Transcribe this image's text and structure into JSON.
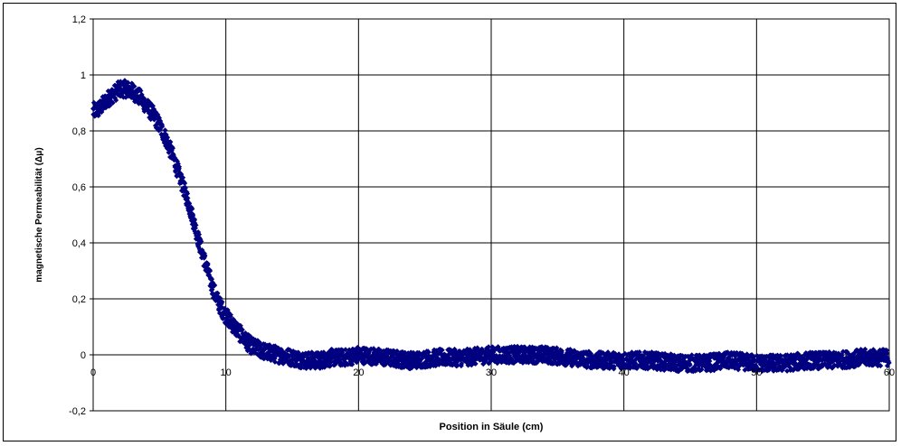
{
  "chart_data": {
    "type": "scatter",
    "title": "",
    "xlabel": "Position in Säule (cm)",
    "ylabel": "magnetische Permeabilität (Δμ)",
    "xlim": [
      0,
      60
    ],
    "ylim": [
      -0.2,
      1.2
    ],
    "x_ticks": [
      0,
      10,
      20,
      30,
      40,
      50,
      60
    ],
    "y_ticks": [
      -0.2,
      0,
      0.2,
      0.4,
      0.6,
      0.8,
      1.0,
      1.2
    ],
    "x_tick_labels": [
      "0",
      "10",
      "20",
      "30",
      "40",
      "50",
      "60"
    ],
    "y_tick_labels": [
      "-0,2",
      "0",
      "0,2",
      "0,4",
      "0,6",
      "0,8",
      "1",
      "1,2"
    ],
    "grid": true,
    "legend": "none",
    "marker_color": "#000080",
    "series": [
      {
        "x": [
          0,
          0.5,
          1,
          1.5,
          2,
          2.5,
          3,
          3.5,
          4,
          4.5,
          5,
          5.5,
          6,
          6.5,
          7,
          7.5,
          8,
          8.5,
          9,
          9.5,
          10,
          10.5,
          11,
          11.5,
          12,
          12.5,
          13,
          14,
          15,
          16,
          17,
          18,
          19,
          20,
          22,
          24,
          26,
          28,
          30,
          32,
          34,
          36,
          38,
          40,
          42,
          44,
          46,
          48,
          50,
          52,
          54,
          56,
          58,
          60
        ],
        "y": [
          0.87,
          0.88,
          0.91,
          0.93,
          0.95,
          0.95,
          0.94,
          0.92,
          0.89,
          0.86,
          0.82,
          0.77,
          0.71,
          0.64,
          0.57,
          0.49,
          0.4,
          0.32,
          0.24,
          0.18,
          0.14,
          0.11,
          0.08,
          0.05,
          0.03,
          0.02,
          0.01,
          0.0,
          -0.01,
          -0.02,
          -0.02,
          -0.01,
          -0.01,
          0.0,
          -0.01,
          -0.02,
          -0.01,
          -0.01,
          0.0,
          0.0,
          0.0,
          -0.01,
          -0.02,
          -0.02,
          -0.02,
          -0.03,
          -0.03,
          -0.02,
          -0.03,
          -0.03,
          -0.02,
          -0.02,
          -0.01,
          -0.01
        ]
      }
    ]
  }
}
